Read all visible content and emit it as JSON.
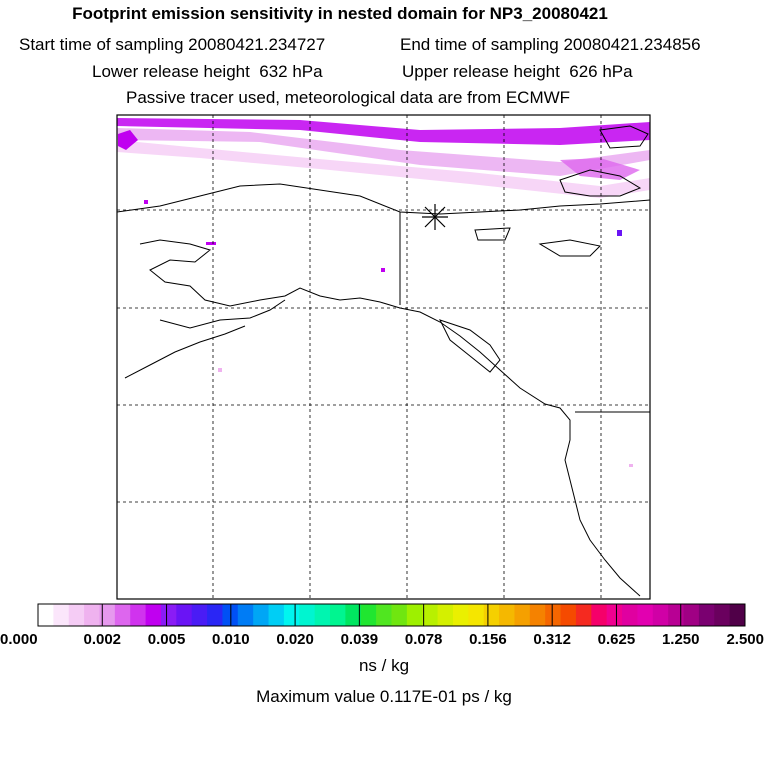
{
  "header": {
    "title": "Footprint emission sensitivity in nested domain for NP3_20080421",
    "start_label": "Start time of sampling 20080421.234727",
    "end_label": "End time of sampling 20080421.234856",
    "lower_label": "Lower release height  632 hPa",
    "upper_label": "Upper release height  626 hPa",
    "tracer_label": "Passive tracer used, meteorological data are from ECMWF"
  },
  "colorbar": {
    "tick_labels": [
      "0.000",
      "0.002",
      "0.005",
      "0.010",
      "0.020",
      "0.039",
      "0.078",
      "0.156",
      "0.312",
      "0.625",
      "1.250",
      "2.500"
    ],
    "colors": [
      "#ffffff",
      "#fbe6fb",
      "#f5ccf5",
      "#efb2ef",
      "#e699ee",
      "#dd66ee",
      "#d033ee",
      "#c000f0",
      "#8a1cf5",
      "#6a14f5",
      "#4a1cf5",
      "#2a26f5",
      "#0050f5",
      "#007cf5",
      "#00a6f5",
      "#00cef5",
      "#00f5f0",
      "#00f5d0",
      "#00f5b0",
      "#00f590",
      "#00e660",
      "#20e630",
      "#50e620",
      "#70e610",
      "#9ef000",
      "#b8f000",
      "#d4f000",
      "#eaf000",
      "#f5e600",
      "#f5d000",
      "#f5b800",
      "#f5a000",
      "#f58200",
      "#f56600",
      "#f54a00",
      "#f52a20",
      "#f5006a",
      "#f00090",
      "#e000a0",
      "#e200b0",
      "#d000a6",
      "#b80094",
      "#a00084",
      "#7a0070",
      "#6a005e",
      "#500048"
    ],
    "unit_label": "ns / kg",
    "max_label": "Maximum value  0.117E-01 ps / kg"
  },
  "map": {
    "release_marker": "release-point-asterisk",
    "plume_color": "#c000f0",
    "plume_light": "#e699ee"
  }
}
